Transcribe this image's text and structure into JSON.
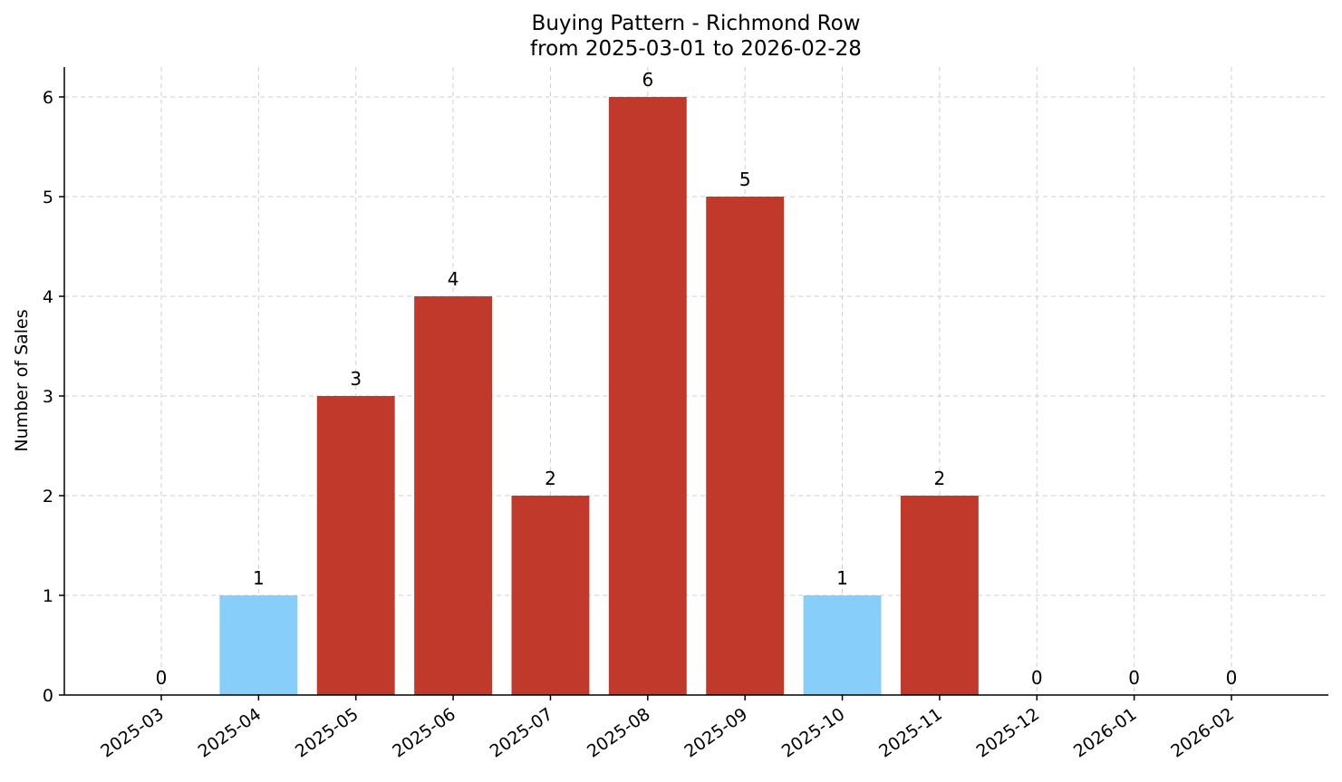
{
  "chart_data": {
    "type": "bar",
    "title": "Buying Pattern - Richmond Row",
    "subtitle": "from 2025-03-01 to 2026-02-28",
    "xlabel": "",
    "ylabel": "Number of Sales",
    "categories": [
      "2025-03",
      "2025-04",
      "2025-05",
      "2025-06",
      "2025-07",
      "2025-08",
      "2025-09",
      "2025-10",
      "2025-11",
      "2025-12",
      "2026-01",
      "2026-02"
    ],
    "values": [
      0,
      1,
      3,
      4,
      2,
      6,
      5,
      1,
      2,
      0,
      0,
      0
    ],
    "bar_colors": [
      "#87CEFA",
      "#87CEFA",
      "#C0392B",
      "#C0392B",
      "#C0392B",
      "#C0392B",
      "#C0392B",
      "#87CEFA",
      "#C0392B",
      "#87CEFA",
      "#87CEFA",
      "#87CEFA"
    ],
    "ylim": [
      0,
      6.3
    ],
    "yticks": [
      0,
      1,
      2,
      3,
      4,
      5,
      6
    ],
    "grid": true,
    "legend": "none"
  }
}
